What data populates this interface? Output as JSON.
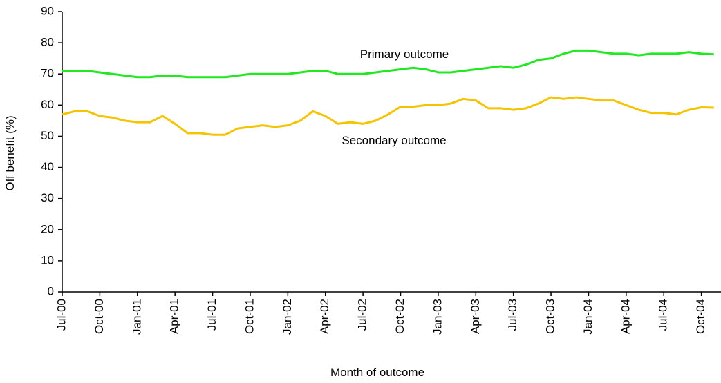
{
  "chart_data": {
    "type": "line",
    "x_label": "Month of outcome",
    "y_label": "Off benefit (%)",
    "annotations": [
      "Primary outcome",
      "Secondary outcome"
    ],
    "categories": [
      "Jul-00",
      null,
      null,
      "Oct-00",
      null,
      null,
      "Jan-01",
      null,
      null,
      "Apr-01",
      null,
      null,
      "Jul-01",
      null,
      null,
      "Oct-01",
      null,
      null,
      "Jan-02",
      null,
      null,
      "Apr-02",
      null,
      null,
      "Jul-02",
      null,
      null,
      "Oct-02",
      null,
      null,
      "Jan-03",
      null,
      null,
      "Apr-03",
      null,
      null,
      "Jul-03",
      null,
      null,
      "Oct-03",
      null,
      null,
      "Jan-04",
      null,
      null,
      "Apr-04",
      null,
      null,
      "Jul-04",
      null,
      null,
      "Oct-04",
      null
    ],
    "series": [
      {
        "color": "#22e822",
        "values": [
          71,
          71,
          71,
          70.5,
          70,
          69.5,
          69,
          69,
          69.5,
          69.5,
          69,
          69,
          69,
          69,
          69.5,
          70,
          70,
          70,
          70,
          70.5,
          71,
          71,
          70,
          70,
          70,
          70.5,
          71,
          71.5,
          72,
          71.5,
          70.5,
          70.5,
          71,
          71.5,
          72,
          72.5,
          72,
          73,
          74.5,
          75,
          76.5,
          77.5,
          77.5,
          77,
          76.5,
          76.5,
          76,
          76.5,
          76.5,
          76.5,
          77,
          76.5,
          76.3
        ]
      },
      {
        "color": "#f5c400",
        "values": [
          57,
          58,
          58,
          56.5,
          56,
          55,
          54.5,
          54.5,
          56.5,
          54,
          51,
          51,
          50.5,
          50.5,
          52.5,
          53,
          53.5,
          53,
          53.5,
          55,
          58,
          56.5,
          54,
          54.5,
          54,
          55,
          57,
          59.5,
          59.5,
          60,
          60,
          60.5,
          62,
          61.5,
          59,
          59,
          58.5,
          59,
          60.5,
          62.5,
          62,
          62.5,
          62,
          61.5,
          61.5,
          60,
          58.5,
          57.5,
          57.5,
          57,
          58.5,
          59.3,
          59.2
        ]
      }
    ],
    "ylim": [
      0,
      90
    ],
    "yticks": [
      0,
      10,
      20,
      30,
      40,
      50,
      60,
      70,
      80,
      90
    ]
  }
}
